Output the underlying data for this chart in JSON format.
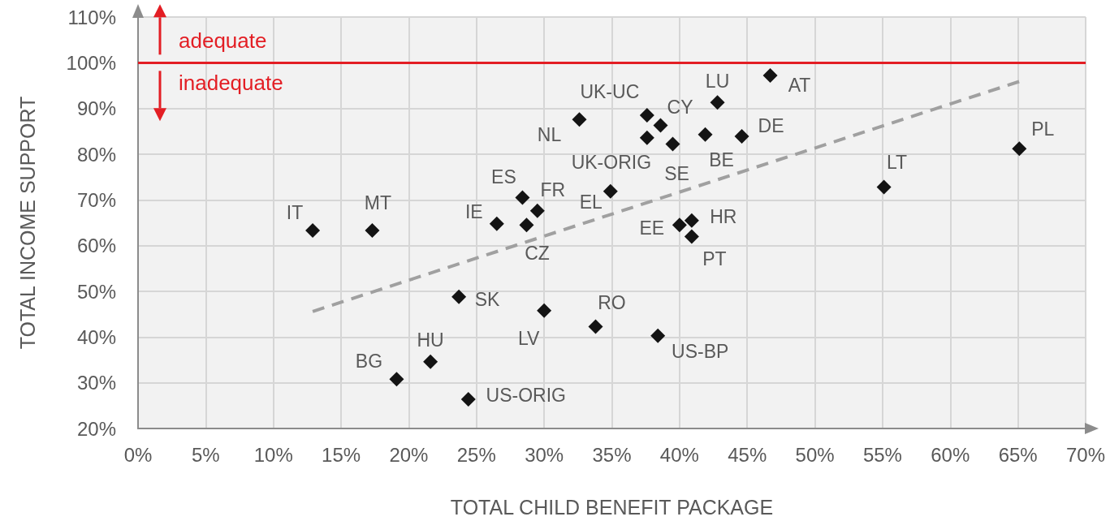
{
  "chart_data": {
    "type": "scatter",
    "xlabel": "TOTAL CHILD BENEFIT PACKAGE",
    "ylabel": "TOTAL INCOME SUPPORT",
    "xlim": [
      0,
      70
    ],
    "ylim": [
      20,
      110
    ],
    "xticks": [
      {
        "value": 0,
        "label": "0%"
      },
      {
        "value": 5,
        "label": "5%"
      },
      {
        "value": 10,
        "label": "10%"
      },
      {
        "value": 15,
        "label": "15%"
      },
      {
        "value": 20,
        "label": "20%"
      },
      {
        "value": 25,
        "label": "25%"
      },
      {
        "value": 30,
        "label": "30%"
      },
      {
        "value": 35,
        "label": "35%"
      },
      {
        "value": 40,
        "label": "40%"
      },
      {
        "value": 45,
        "label": "45%"
      },
      {
        "value": 50,
        "label": "50%"
      },
      {
        "value": 55,
        "label": "55%"
      },
      {
        "value": 60,
        "label": "60%"
      },
      {
        "value": 65,
        "label": "65%"
      },
      {
        "value": 70,
        "label": "70%"
      }
    ],
    "yticks": [
      {
        "value": 20,
        "label": "20%"
      },
      {
        "value": 30,
        "label": "30%"
      },
      {
        "value": 40,
        "label": "40%"
      },
      {
        "value": 50,
        "label": "50%"
      },
      {
        "value": 60,
        "label": "60%"
      },
      {
        "value": 70,
        "label": "70%"
      },
      {
        "value": 80,
        "label": "80%"
      },
      {
        "value": 90,
        "label": "90%"
      },
      {
        "value": 100,
        "label": "100%"
      },
      {
        "value": 110,
        "label": "110%"
      }
    ],
    "grid": true,
    "legend": false,
    "marker": "diamond",
    "series": [
      {
        "name": "IT",
        "color": "#141414",
        "x": [
          12.9
        ],
        "values": [
          63.3
        ]
      },
      {
        "name": "MT",
        "color": "#141414",
        "x": [
          17.3
        ],
        "values": [
          63.3
        ]
      },
      {
        "name": "BG",
        "color": "#141414",
        "x": [
          19.1
        ],
        "values": [
          30.8
        ]
      },
      {
        "name": "HU",
        "color": "#141414",
        "x": [
          21.6
        ],
        "values": [
          34.6
        ]
      },
      {
        "name": "SK",
        "color": "#141414",
        "x": [
          23.7
        ],
        "values": [
          48.8
        ]
      },
      {
        "name": "US-ORIG",
        "color": "#141414",
        "x": [
          24.4
        ],
        "values": [
          26.4
        ]
      },
      {
        "name": "IE",
        "color": "#141414",
        "x": [
          26.5
        ],
        "values": [
          64.8
        ]
      },
      {
        "name": "ES",
        "color": "#141414",
        "x": [
          28.4
        ],
        "values": [
          70.5
        ]
      },
      {
        "name": "CZ",
        "color": "#141414",
        "x": [
          28.7
        ],
        "values": [
          64.5
        ]
      },
      {
        "name": "FR",
        "color": "#141414",
        "x": [
          29.5
        ],
        "values": [
          67.6
        ]
      },
      {
        "name": "LV",
        "color": "#141414",
        "x": [
          30.0
        ],
        "values": [
          45.8
        ]
      },
      {
        "name": "NL",
        "color": "#141414",
        "x": [
          32.6
        ],
        "values": [
          87.6
        ]
      },
      {
        "name": "RO",
        "color": "#141414",
        "x": [
          33.8
        ],
        "values": [
          42.3
        ]
      },
      {
        "name": "EL",
        "color": "#141414",
        "x": [
          34.9
        ],
        "values": [
          71.9
        ]
      },
      {
        "name": "UK-UC",
        "color": "#141414",
        "x": [
          37.6
        ],
        "values": [
          88.5
        ]
      },
      {
        "name": "UK-ORIG",
        "color": "#141414",
        "x": [
          37.6
        ],
        "values": [
          83.6
        ]
      },
      {
        "name": "US-BP",
        "color": "#141414",
        "x": [
          38.4
        ],
        "values": [
          40.3
        ]
      },
      {
        "name": "CY",
        "color": "#141414",
        "x": [
          38.6
        ],
        "values": [
          86.3
        ]
      },
      {
        "name": "SE",
        "color": "#141414",
        "x": [
          39.5
        ],
        "values": [
          82.2
        ]
      },
      {
        "name": "EE",
        "color": "#141414",
        "x": [
          40.0
        ],
        "values": [
          64.5
        ]
      },
      {
        "name": "HR",
        "color": "#141414",
        "x": [
          40.9
        ],
        "values": [
          65.5
        ]
      },
      {
        "name": "PT",
        "color": "#141414",
        "x": [
          40.9
        ],
        "values": [
          62.0
        ]
      },
      {
        "name": "BE",
        "color": "#141414",
        "x": [
          41.9
        ],
        "values": [
          84.3
        ]
      },
      {
        "name": "LU",
        "color": "#141414",
        "x": [
          42.8
        ],
        "values": [
          91.3
        ]
      },
      {
        "name": "DE",
        "color": "#141414",
        "x": [
          44.6
        ],
        "values": [
          83.9
        ]
      },
      {
        "name": "AT",
        "color": "#141414",
        "x": [
          46.7
        ],
        "values": [
          97.2
        ]
      },
      {
        "name": "LT",
        "color": "#141414",
        "x": [
          55.1
        ],
        "values": [
          72.8
        ]
      },
      {
        "name": "PL",
        "color": "#141414",
        "x": [
          65.1
        ],
        "values": [
          81.2
        ]
      },
      {
        "type": "line",
        "color": "#a0a0a0",
        "line_style": "dashed",
        "marker": "none",
        "x": [
          12.9,
          65.1
        ],
        "values": [
          45.6,
          95.9
        ]
      }
    ],
    "ref_lines": [
      {
        "axis": "y",
        "value": 100,
        "color": "#e31e24"
      }
    ],
    "annotations": [
      "adequate",
      "inadequate"
    ]
  }
}
